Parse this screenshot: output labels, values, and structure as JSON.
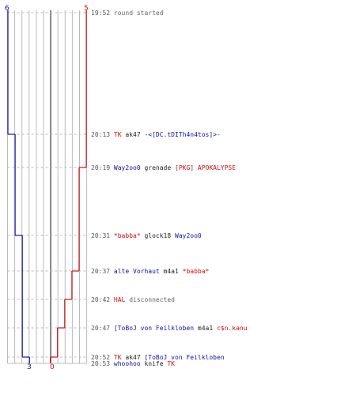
{
  "scores": {
    "top_left": "6",
    "top_right": "5",
    "bottom_left": "3",
    "bottom_right": "0"
  },
  "colors": {
    "team_blue": "#1111aa",
    "team_red": "#cc1111",
    "neutral": "#222222",
    "system": "#666666",
    "time": "#555555",
    "grid": "#bbbbbb",
    "center": "#666666",
    "dash": "#bbbbbb"
  },
  "events": [
    {
      "time": "19:52",
      "parts": [
        {
          "text": "round started",
          "role": "system"
        }
      ]
    },
    {
      "time": "20:13",
      "parts": [
        {
          "text": "TK",
          "role": "red"
        },
        {
          "text": " ak47 ",
          "role": "neutral"
        },
        {
          "text": "-<[DC.tDITh4n4tos]>-",
          "role": "blue"
        }
      ]
    },
    {
      "time": "20:19",
      "parts": [
        {
          "text": "Way2oo0",
          "role": "blue"
        },
        {
          "text": " grenade ",
          "role": "neutral"
        },
        {
          "text": "[PKG] APOKALYPSE",
          "role": "red"
        }
      ]
    },
    {
      "time": "20:31",
      "parts": [
        {
          "text": "*babba*",
          "role": "red"
        },
        {
          "text": " glock18 ",
          "role": "neutral"
        },
        {
          "text": "Way2oo0",
          "role": "blue"
        }
      ]
    },
    {
      "time": "20:37",
      "parts": [
        {
          "text": "alte Vorhaut",
          "role": "blue"
        },
        {
          "text": " m4a1 ",
          "role": "neutral"
        },
        {
          "text": "*babba*",
          "role": "red"
        }
      ]
    },
    {
      "time": "20:42",
      "parts": [
        {
          "text": "HAL",
          "role": "red"
        },
        {
          "text": " disconnected",
          "role": "system"
        }
      ]
    },
    {
      "time": "20:47",
      "parts": [
        {
          "text": "[ToBoJ von Feilkloben",
          "role": "blue"
        },
        {
          "text": " m4a1 ",
          "role": "neutral"
        },
        {
          "text": "c$n.kanu",
          "role": "red"
        }
      ]
    },
    {
      "time": "20:52",
      "parts": [
        {
          "text": "TK",
          "role": "red"
        },
        {
          "text": " ak47 ",
          "role": "neutral"
        },
        {
          "text": "[ToBoJ von Feilkloben",
          "role": "blue"
        }
      ]
    },
    {
      "time": "20:53",
      "parts": [
        {
          "text": "whoohoo",
          "role": "blue"
        },
        {
          "text": " knife ",
          "role": "neutral"
        },
        {
          "text": "TK",
          "role": "red"
        }
      ]
    }
  ]
}
